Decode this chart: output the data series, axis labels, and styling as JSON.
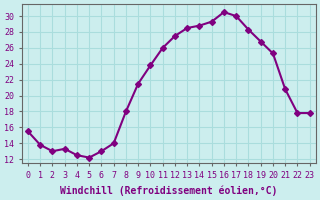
{
  "x": [
    0,
    1,
    2,
    3,
    4,
    5,
    6,
    7,
    8,
    9,
    10,
    11,
    12,
    13,
    14,
    15,
    16,
    17,
    18,
    19,
    20,
    21,
    22,
    23
  ],
  "y": [
    15.5,
    13.8,
    13.0,
    13.3,
    12.5,
    12.2,
    13.0,
    14.0,
    18.0,
    21.5,
    23.8,
    26.0,
    27.5,
    28.5,
    28.8,
    29.3,
    30.5,
    30.0,
    28.3,
    26.8,
    25.3,
    20.8,
    17.8,
    17.8
  ],
  "color": "#800080",
  "background_color": "#cceeee",
  "grid_color": "#aadddd",
  "xlabel": "Windchill (Refroidissement éolien,°C)",
  "xlim": [
    -0.5,
    23.5
  ],
  "ylim": [
    11.5,
    31.5
  ],
  "yticks": [
    12,
    14,
    16,
    18,
    20,
    22,
    24,
    26,
    28,
    30
  ],
  "xticks": [
    0,
    1,
    2,
    3,
    4,
    5,
    6,
    7,
    8,
    9,
    10,
    11,
    12,
    13,
    14,
    15,
    16,
    17,
    18,
    19,
    20,
    21,
    22,
    23
  ],
  "marker": "D",
  "markersize": 3,
  "linewidth": 1.5,
  "xlabel_fontsize": 7,
  "tick_fontsize": 6,
  "spine_color": "#666666"
}
